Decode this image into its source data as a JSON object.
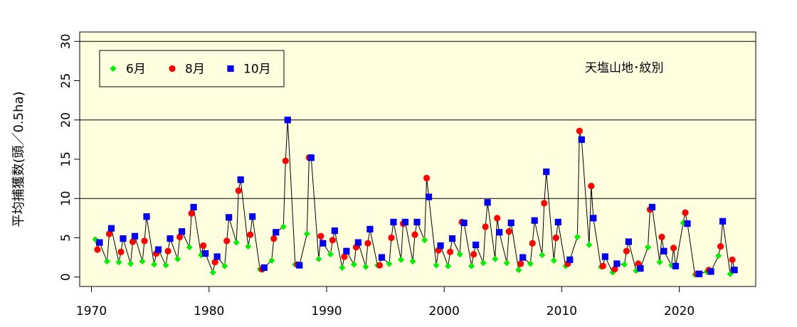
{
  "chart_data": {
    "type": "line",
    "title": "",
    "annotation": "天塩山地･紋別",
    "xlabel": "",
    "ylabel": "平均捕獲数(頭／0.5ha)",
    "xlim": [
      1969,
      2026.5
    ],
    "ylim": [
      -1.2,
      31.2
    ],
    "x_ticks": [
      1970,
      1980,
      1990,
      2000,
      2010,
      2020
    ],
    "y_ticks": [
      0,
      5,
      10,
      15,
      20,
      25,
      30
    ],
    "horizontal_gridlines": [
      10,
      20,
      30
    ],
    "plot_background": "#ffffe0",
    "legend_placement": "top-left",
    "series": [
      {
        "name": "6月",
        "color": "#00ee00",
        "marker": "diamond",
        "x": [
          1970.5,
          1971.5,
          1972.5,
          1973.5,
          1974.5,
          1975.5,
          1976.5,
          1977.5,
          1978.5,
          1979.5,
          1980.5,
          1981.5,
          1982.5,
          1983.5,
          1984.5,
          1985.5,
          1986.5,
          1987.5,
          1988.5,
          1989.5,
          1990.5,
          1991.5,
          1992.5,
          1993.5,
          1994.5,
          1995.5,
          1996.5,
          1997.5,
          1998.5,
          1999.5,
          2000.5,
          2001.5,
          2002.5,
          2003.5,
          2004.5,
          2005.5,
          2006.5,
          2007.5,
          2008.5,
          2009.5,
          2010.5,
          2011.5,
          2012.5,
          2013.5,
          2014.5,
          2015.5,
          2016.5,
          2017.5,
          2018.5,
          2019.5,
          2020.5,
          2021.5,
          2022.5,
          2023.5,
          2024.5
        ],
        "values": [
          4.8,
          2.0,
          1.9,
          1.7,
          2.0,
          1.6,
          1.5,
          2.3,
          3.8,
          2.8,
          0.6,
          1.4,
          4.4,
          3.9,
          1.0,
          2.1,
          6.4,
          1.6,
          5.5,
          2.3,
          2.9,
          1.2,
          1.6,
          1.3,
          1.5,
          1.7,
          2.2,
          2.0,
          4.7,
          1.5,
          1.4,
          2.9,
          1.4,
          1.8,
          2.3,
          1.8,
          0.9,
          1.7,
          2.8,
          2.1,
          1.4,
          5.1,
          4.1,
          1.3,
          0.6,
          1.6,
          0.8,
          3.8,
          1.9,
          1.5,
          6.9,
          0.3,
          0.7,
          2.7,
          0.4
        ]
      },
      {
        "name": "8月",
        "color": "#ff0000",
        "marker": "circle",
        "x": [
          1970.5,
          1971.5,
          1972.5,
          1973.5,
          1974.5,
          1975.5,
          1976.5,
          1977.5,
          1978.5,
          1979.5,
          1980.5,
          1981.5,
          1982.5,
          1983.5,
          1984.5,
          1985.5,
          1986.5,
          1987.5,
          1988.5,
          1989.5,
          1990.5,
          1991.5,
          1992.5,
          1993.5,
          1994.5,
          1995.5,
          1996.5,
          1997.5,
          1998.5,
          1999.5,
          2000.5,
          2001.5,
          2002.5,
          2003.5,
          2004.5,
          2005.5,
          2006.5,
          2007.5,
          2008.5,
          2009.5,
          2010.5,
          2011.5,
          2012.5,
          2013.5,
          2014.5,
          2015.5,
          2016.5,
          2017.5,
          2018.5,
          2019.5,
          2020.5,
          2021.5,
          2022.5,
          2023.5,
          2024.5
        ],
        "values": [
          3.5,
          5.5,
          3.2,
          4.5,
          4.6,
          3.0,
          3.3,
          5.1,
          8.1,
          4.0,
          1.9,
          4.6,
          11.0,
          5.4,
          1.0,
          4.9,
          14.8,
          1.6,
          15.2,
          5.2,
          4.7,
          2.6,
          3.8,
          4.3,
          1.5,
          5.0,
          6.8,
          5.4,
          12.6,
          3.4,
          3.2,
          7.0,
          2.9,
          6.4,
          7.5,
          5.8,
          1.7,
          4.3,
          9.4,
          5.0,
          1.7,
          18.6,
          11.6,
          1.4,
          1.0,
          3.3,
          1.7,
          8.6,
          5.1,
          3.7,
          8.2,
          0.4,
          0.9,
          3.9,
          2.2
        ]
      },
      {
        "name": "10月",
        "color": "#0000ee",
        "marker": "square",
        "x": [
          1970.5,
          1971.5,
          1972.5,
          1973.5,
          1974.5,
          1975.5,
          1976.5,
          1977.5,
          1978.5,
          1979.5,
          1980.5,
          1981.5,
          1982.5,
          1983.5,
          1984.5,
          1985.5,
          1986.5,
          1987.5,
          1988.5,
          1989.5,
          1990.5,
          1991.5,
          1992.5,
          1993.5,
          1994.5,
          1995.5,
          1996.5,
          1997.5,
          1998.5,
          1999.5,
          2000.5,
          2001.5,
          2002.5,
          2003.5,
          2004.5,
          2005.5,
          2006.5,
          2007.5,
          2008.5,
          2009.5,
          2010.5,
          2011.5,
          2012.5,
          2013.5,
          2014.5,
          2015.5,
          2016.5,
          2017.5,
          2018.5,
          2019.5,
          2020.5,
          2021.5,
          2022.5,
          2023.5,
          2024.5
        ],
        "values": [
          4.4,
          6.2,
          4.9,
          5.2,
          7.7,
          3.5,
          4.9,
          5.8,
          8.9,
          3.0,
          2.6,
          7.6,
          12.4,
          7.7,
          1.2,
          5.7,
          20.0,
          1.5,
          15.2,
          4.3,
          5.9,
          3.3,
          4.4,
          6.1,
          2.5,
          7.0,
          7.0,
          7.0,
          10.2,
          4.0,
          4.9,
          6.9,
          4.1,
          9.5,
          5.7,
          6.9,
          2.5,
          7.2,
          13.4,
          7.0,
          2.2,
          17.5,
          7.5,
          2.6,
          1.7,
          4.5,
          1.1,
          8.9,
          3.3,
          1.4,
          6.8,
          0.4,
          0.7,
          7.1,
          0.9
        ]
      }
    ]
  }
}
